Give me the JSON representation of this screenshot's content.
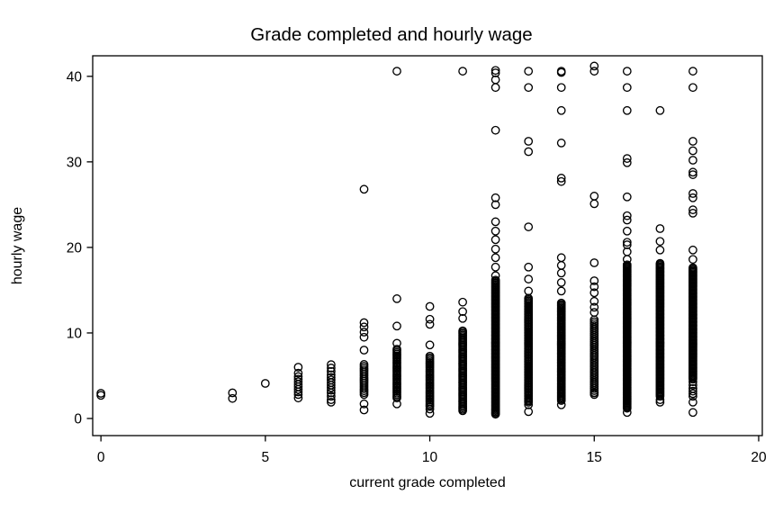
{
  "chart_data": {
    "type": "scatter",
    "title": "Grade completed and hourly wage",
    "xlabel": "current grade completed",
    "ylabel": "hourly wage",
    "xlim": [
      -0.25,
      20.11
    ],
    "ylim": [
      -2.0,
      42.4
    ],
    "xticks": [
      0,
      5,
      10,
      15,
      20
    ],
    "yticks": [
      0,
      10,
      20,
      30,
      40
    ],
    "grid": false,
    "legend": "none",
    "marker": {
      "shape": "hollow-circle",
      "color": "#000000",
      "radius": 4.2,
      "stroke_width": 1.35
    },
    "frame_color": "#000000",
    "background": "#ffffff",
    "points_sparse": [
      [
        0,
        2.95
      ],
      [
        0,
        2.7
      ],
      [
        4,
        3.0
      ],
      [
        4,
        2.35
      ],
      [
        5,
        4.1
      ],
      [
        6,
        6.0
      ],
      [
        6,
        5.3
      ],
      [
        6,
        4.9
      ],
      [
        6,
        4.6
      ],
      [
        6,
        4.3
      ],
      [
        6,
        4.0
      ],
      [
        6,
        3.7
      ],
      [
        6,
        3.4
      ],
      [
        6,
        3.1
      ],
      [
        6,
        2.8
      ],
      [
        6,
        2.4
      ],
      [
        7,
        6.3
      ],
      [
        7,
        5.9
      ],
      [
        7,
        5.5
      ],
      [
        7,
        5.1
      ],
      [
        7,
        4.8
      ],
      [
        7,
        4.5
      ],
      [
        7,
        4.2
      ],
      [
        7,
        3.9
      ],
      [
        7,
        3.6
      ],
      [
        7,
        3.3
      ],
      [
        7,
        3.0
      ],
      [
        7,
        2.6
      ],
      [
        7,
        2.2
      ],
      [
        7,
        1.9
      ],
      [
        8,
        26.8
      ],
      [
        8,
        11.2
      ],
      [
        8,
        10.7
      ],
      [
        8,
        10.1
      ],
      [
        8,
        9.5
      ],
      [
        8,
        8.0
      ],
      [
        8,
        1.7
      ],
      [
        8,
        1.0
      ],
      [
        9,
        40.6
      ],
      [
        9,
        14.0
      ],
      [
        9,
        10.8
      ],
      [
        9,
        8.8
      ],
      [
        9,
        1.7
      ],
      [
        10,
        13.1
      ],
      [
        10,
        11.6
      ],
      [
        10,
        11.0
      ],
      [
        10,
        8.6
      ],
      [
        10,
        1.1
      ],
      [
        10,
        0.6
      ],
      [
        11,
        40.6
      ],
      [
        11,
        13.6
      ],
      [
        11,
        12.5
      ],
      [
        11,
        11.7
      ],
      [
        12,
        40.7
      ],
      [
        12,
        40.4
      ],
      [
        12,
        39.6
      ],
      [
        12,
        38.7
      ],
      [
        12,
        33.7
      ],
      [
        12,
        25.8
      ],
      [
        12,
        25.0
      ],
      [
        12,
        23.0
      ],
      [
        12,
        21.9
      ],
      [
        12,
        20.9
      ],
      [
        12,
        19.8
      ],
      [
        12,
        18.8
      ],
      [
        12,
        17.7
      ],
      [
        12,
        16.7
      ],
      [
        13,
        40.6
      ],
      [
        13,
        38.7
      ],
      [
        13,
        32.4
      ],
      [
        13,
        31.2
      ],
      [
        13,
        22.4
      ],
      [
        13,
        17.7
      ],
      [
        13,
        16.3
      ],
      [
        13,
        14.9
      ],
      [
        13,
        1.6
      ],
      [
        13,
        0.8
      ],
      [
        14,
        40.6
      ],
      [
        14,
        40.45
      ],
      [
        14,
        38.7
      ],
      [
        14,
        36.0
      ],
      [
        14,
        32.2
      ],
      [
        14,
        28.1
      ],
      [
        14,
        27.7
      ],
      [
        14,
        18.8
      ],
      [
        14,
        17.9
      ],
      [
        14,
        17.0
      ],
      [
        14,
        15.9
      ],
      [
        14,
        14.9
      ],
      [
        14,
        1.6
      ],
      [
        15,
        41.2
      ],
      [
        15,
        40.6
      ],
      [
        15,
        26.0
      ],
      [
        15,
        25.1
      ],
      [
        15,
        18.2
      ],
      [
        15,
        16.1
      ],
      [
        15,
        15.4
      ],
      [
        15,
        14.7
      ],
      [
        15,
        13.7
      ],
      [
        15,
        13.0
      ],
      [
        15,
        12.4
      ],
      [
        15,
        3.0
      ],
      [
        16,
        40.6
      ],
      [
        16,
        38.7
      ],
      [
        16,
        36.0
      ],
      [
        16,
        30.4
      ],
      [
        16,
        29.9
      ],
      [
        16,
        25.9
      ],
      [
        16,
        23.7
      ],
      [
        16,
        23.2
      ],
      [
        16,
        21.9
      ],
      [
        16,
        20.6
      ],
      [
        16,
        20.3
      ],
      [
        16,
        19.5
      ],
      [
        16,
        18.6
      ],
      [
        16,
        0.7
      ],
      [
        17,
        36.0
      ],
      [
        17,
        22.2
      ],
      [
        17,
        20.7
      ],
      [
        17,
        19.7
      ],
      [
        17,
        2.2
      ],
      [
        17,
        1.9
      ],
      [
        18,
        40.6
      ],
      [
        18,
        38.7
      ],
      [
        18,
        32.4
      ],
      [
        18,
        31.3
      ],
      [
        18,
        30.2
      ],
      [
        18,
        28.8
      ],
      [
        18,
        28.5
      ],
      [
        18,
        26.3
      ],
      [
        18,
        25.8
      ],
      [
        18,
        24.4
      ],
      [
        18,
        24.0
      ],
      [
        18,
        19.7
      ],
      [
        18,
        18.6
      ],
      [
        18,
        4.3
      ],
      [
        18,
        3.9
      ],
      [
        18,
        3.5
      ],
      [
        18,
        3.2
      ],
      [
        18,
        2.9
      ],
      [
        18,
        2.6
      ],
      [
        18,
        1.9
      ],
      [
        18,
        0.7
      ]
    ],
    "dense_bands": [
      {
        "grade": 8,
        "from": 2.8,
        "to": 6.5,
        "step": 0.22
      },
      {
        "grade": 9,
        "from": 2.4,
        "to": 8.1,
        "step": 0.19
      },
      {
        "grade": 10,
        "from": 1.4,
        "to": 7.3,
        "step": 0.19
      },
      {
        "grade": 11,
        "from": 0.9,
        "to": 10.4,
        "step": 0.17
      },
      {
        "grade": 12,
        "from": 0.5,
        "to": 16.3,
        "step": 0.14
      },
      {
        "grade": 13,
        "from": 1.9,
        "to": 14.1,
        "step": 0.16
      },
      {
        "grade": 14,
        "from": 2.1,
        "to": 13.6,
        "step": 0.15
      },
      {
        "grade": 15,
        "from": 2.8,
        "to": 11.7,
        "step": 0.23
      },
      {
        "grade": 16,
        "from": 1.2,
        "to": 18.0,
        "step": 0.13
      },
      {
        "grade": 17,
        "from": 2.6,
        "to": 18.2,
        "step": 0.14
      },
      {
        "grade": 18,
        "from": 4.6,
        "to": 17.7,
        "step": 0.14
      }
    ]
  }
}
